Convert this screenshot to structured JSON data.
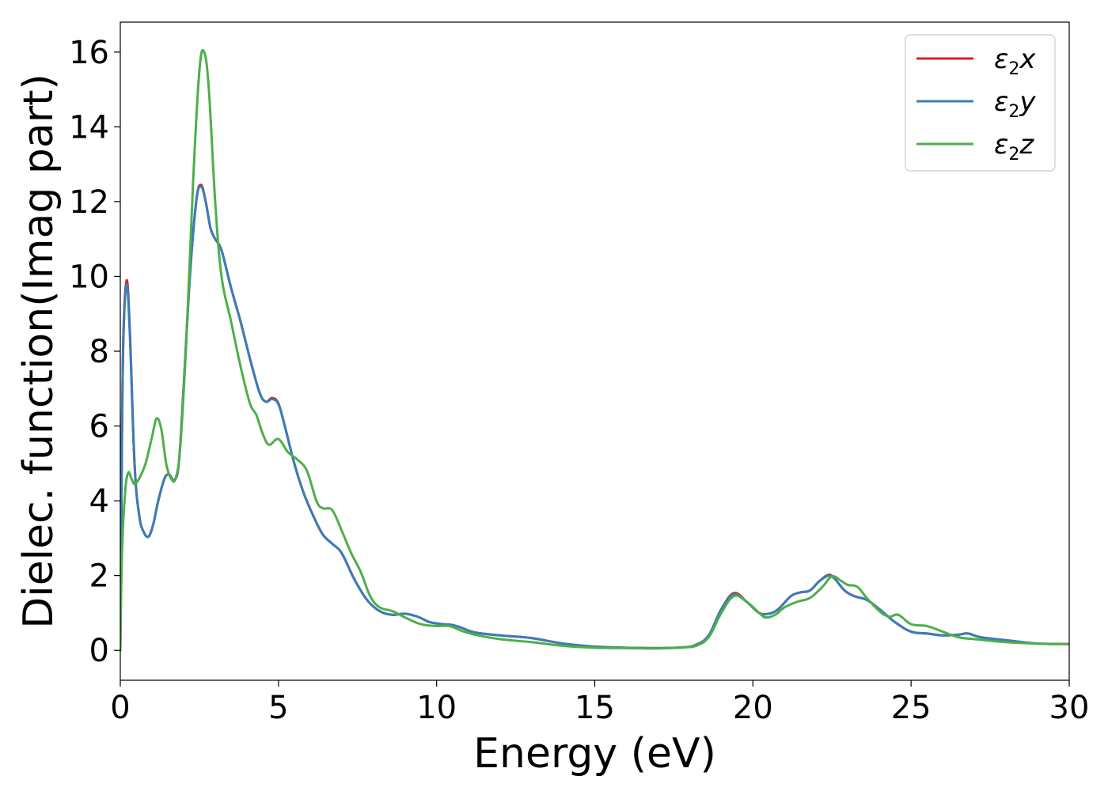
{
  "chart_data": {
    "type": "line",
    "title": "",
    "xlabel": "Energy (eV)",
    "ylabel": "Dielec. function(Imag part)",
    "xlim": [
      0,
      30
    ],
    "ylim": [
      -0.8,
      16.8
    ],
    "xticks": [
      0,
      5,
      10,
      15,
      20,
      25,
      30
    ],
    "yticks": [
      0,
      2,
      4,
      6,
      8,
      10,
      12,
      14,
      16
    ],
    "xtick_labels": [
      "0",
      "5",
      "10",
      "15",
      "20",
      "25",
      "30"
    ],
    "ytick_labels": [
      "0",
      "2",
      "4",
      "6",
      "8",
      "10",
      "12",
      "14",
      "16"
    ],
    "grid": false,
    "legend_position": "top-right",
    "series": [
      {
        "name": "ε2x",
        "legend_base": "ε",
        "legend_sub": "2",
        "legend_var": "x",
        "color": "#e41a1c",
        "points": [
          [
            0,
            0
          ],
          [
            0.05,
            5.5
          ],
          [
            0.1,
            8.5
          ],
          [
            0.2,
            9.9
          ],
          [
            0.3,
            8.6
          ],
          [
            0.45,
            5.0
          ],
          [
            0.6,
            3.6
          ],
          [
            0.75,
            3.15
          ],
          [
            0.9,
            3.05
          ],
          [
            1.05,
            3.4
          ],
          [
            1.2,
            4.0
          ],
          [
            1.4,
            4.6
          ],
          [
            1.55,
            4.7
          ],
          [
            1.7,
            4.55
          ],
          [
            1.85,
            5.0
          ],
          [
            2.0,
            7.0
          ],
          [
            2.2,
            10.0
          ],
          [
            2.4,
            12.0
          ],
          [
            2.55,
            12.45
          ],
          [
            2.7,
            12.0
          ],
          [
            2.85,
            11.3
          ],
          [
            3.0,
            11.0
          ],
          [
            3.2,
            10.7
          ],
          [
            3.5,
            9.7
          ],
          [
            3.8,
            8.8
          ],
          [
            4.1,
            7.8
          ],
          [
            4.4,
            6.9
          ],
          [
            4.6,
            6.65
          ],
          [
            4.8,
            6.75
          ],
          [
            5.0,
            6.6
          ],
          [
            5.2,
            6.0
          ],
          [
            5.5,
            5.0
          ],
          [
            5.8,
            4.2
          ],
          [
            6.1,
            3.6
          ],
          [
            6.4,
            3.1
          ],
          [
            6.7,
            2.85
          ],
          [
            7.0,
            2.6
          ],
          [
            7.4,
            1.9
          ],
          [
            7.8,
            1.35
          ],
          [
            8.2,
            1.05
          ],
          [
            8.6,
            0.95
          ],
          [
            9.0,
            0.98
          ],
          [
            9.4,
            0.9
          ],
          [
            9.8,
            0.75
          ],
          [
            10.2,
            0.7
          ],
          [
            10.5,
            0.68
          ],
          [
            10.8,
            0.6
          ],
          [
            11.2,
            0.48
          ],
          [
            12,
            0.4
          ],
          [
            13,
            0.33
          ],
          [
            14,
            0.18
          ],
          [
            15,
            0.1
          ],
          [
            16,
            0.07
          ],
          [
            17,
            0.06
          ],
          [
            17.8,
            0.08
          ],
          [
            18.2,
            0.15
          ],
          [
            18.6,
            0.4
          ],
          [
            19.0,
            1.1
          ],
          [
            19.4,
            1.53
          ],
          [
            19.8,
            1.3
          ],
          [
            20.2,
            1.0
          ],
          [
            20.5,
            0.98
          ],
          [
            20.8,
            1.1
          ],
          [
            21.2,
            1.45
          ],
          [
            21.5,
            1.55
          ],
          [
            21.8,
            1.6
          ],
          [
            22.1,
            1.85
          ],
          [
            22.4,
            2.02
          ],
          [
            22.6,
            1.9
          ],
          [
            22.9,
            1.6
          ],
          [
            23.2,
            1.45
          ],
          [
            23.6,
            1.35
          ],
          [
            24.0,
            1.1
          ],
          [
            24.5,
            0.75
          ],
          [
            25.0,
            0.5
          ],
          [
            25.5,
            0.45
          ],
          [
            26.0,
            0.4
          ],
          [
            26.5,
            0.42
          ],
          [
            26.8,
            0.45
          ],
          [
            27.2,
            0.35
          ],
          [
            28,
            0.27
          ],
          [
            29,
            0.18
          ],
          [
            30,
            0.17
          ]
        ]
      },
      {
        "name": "ε2y",
        "legend_base": "ε",
        "legend_sub": "2",
        "legend_var": "y",
        "color": "#377eb8",
        "points": [
          [
            0,
            0
          ],
          [
            0.05,
            5.4
          ],
          [
            0.1,
            8.4
          ],
          [
            0.2,
            9.8
          ],
          [
            0.3,
            8.5
          ],
          [
            0.45,
            5.0
          ],
          [
            0.6,
            3.6
          ],
          [
            0.75,
            3.15
          ],
          [
            0.9,
            3.05
          ],
          [
            1.05,
            3.4
          ],
          [
            1.2,
            4.0
          ],
          [
            1.4,
            4.6
          ],
          [
            1.55,
            4.7
          ],
          [
            1.7,
            4.55
          ],
          [
            1.85,
            5.0
          ],
          [
            2.0,
            7.0
          ],
          [
            2.2,
            10.0
          ],
          [
            2.4,
            12.0
          ],
          [
            2.55,
            12.4
          ],
          [
            2.7,
            12.0
          ],
          [
            2.85,
            11.3
          ],
          [
            3.0,
            11.0
          ],
          [
            3.2,
            10.7
          ],
          [
            3.5,
            9.7
          ],
          [
            3.8,
            8.8
          ],
          [
            4.1,
            7.8
          ],
          [
            4.4,
            6.9
          ],
          [
            4.6,
            6.65
          ],
          [
            4.8,
            6.72
          ],
          [
            5.0,
            6.58
          ],
          [
            5.2,
            6.0
          ],
          [
            5.5,
            5.0
          ],
          [
            5.8,
            4.2
          ],
          [
            6.1,
            3.6
          ],
          [
            6.4,
            3.1
          ],
          [
            6.7,
            2.85
          ],
          [
            7.0,
            2.6
          ],
          [
            7.4,
            1.9
          ],
          [
            7.8,
            1.35
          ],
          [
            8.2,
            1.05
          ],
          [
            8.6,
            0.95
          ],
          [
            9.0,
            0.98
          ],
          [
            9.4,
            0.9
          ],
          [
            9.8,
            0.75
          ],
          [
            10.2,
            0.7
          ],
          [
            10.5,
            0.68
          ],
          [
            10.8,
            0.6
          ],
          [
            11.2,
            0.48
          ],
          [
            12,
            0.4
          ],
          [
            13,
            0.33
          ],
          [
            14,
            0.18
          ],
          [
            15,
            0.1
          ],
          [
            16,
            0.07
          ],
          [
            17,
            0.06
          ],
          [
            17.8,
            0.08
          ],
          [
            18.2,
            0.15
          ],
          [
            18.6,
            0.4
          ],
          [
            19.0,
            1.1
          ],
          [
            19.4,
            1.5
          ],
          [
            19.8,
            1.3
          ],
          [
            20.2,
            1.0
          ],
          [
            20.5,
            0.98
          ],
          [
            20.8,
            1.1
          ],
          [
            21.2,
            1.45
          ],
          [
            21.5,
            1.55
          ],
          [
            21.8,
            1.6
          ],
          [
            22.1,
            1.85
          ],
          [
            22.4,
            2.0
          ],
          [
            22.6,
            1.9
          ],
          [
            22.9,
            1.6
          ],
          [
            23.2,
            1.45
          ],
          [
            23.6,
            1.35
          ],
          [
            24.0,
            1.1
          ],
          [
            24.5,
            0.75
          ],
          [
            25.0,
            0.5
          ],
          [
            25.5,
            0.45
          ],
          [
            26.0,
            0.4
          ],
          [
            26.5,
            0.42
          ],
          [
            26.8,
            0.45
          ],
          [
            27.2,
            0.35
          ],
          [
            28,
            0.27
          ],
          [
            29,
            0.18
          ],
          [
            30,
            0.17
          ]
        ]
      },
      {
        "name": "ε2z",
        "legend_base": "ε",
        "legend_sub": "2",
        "legend_var": "z",
        "color": "#4daf4a",
        "points": [
          [
            0,
            0
          ],
          [
            0.05,
            2.5
          ],
          [
            0.15,
            4.2
          ],
          [
            0.25,
            4.75
          ],
          [
            0.35,
            4.6
          ],
          [
            0.45,
            4.45
          ],
          [
            0.6,
            4.6
          ],
          [
            0.8,
            5.0
          ],
          [
            1.0,
            5.7
          ],
          [
            1.15,
            6.2
          ],
          [
            1.3,
            5.9
          ],
          [
            1.45,
            5.0
          ],
          [
            1.6,
            4.6
          ],
          [
            1.75,
            4.6
          ],
          [
            1.9,
            5.5
          ],
          [
            2.1,
            8.5
          ],
          [
            2.3,
            12.5
          ],
          [
            2.5,
            15.5
          ],
          [
            2.65,
            16.0
          ],
          [
            2.8,
            15.0
          ],
          [
            3.0,
            12.0
          ],
          [
            3.2,
            10.0
          ],
          [
            3.5,
            8.8
          ],
          [
            3.8,
            7.6
          ],
          [
            4.1,
            6.6
          ],
          [
            4.3,
            6.3
          ],
          [
            4.5,
            5.8
          ],
          [
            4.7,
            5.5
          ],
          [
            5.0,
            5.65
          ],
          [
            5.3,
            5.3
          ],
          [
            5.6,
            5.1
          ],
          [
            5.9,
            4.8
          ],
          [
            6.2,
            4.0
          ],
          [
            6.4,
            3.8
          ],
          [
            6.7,
            3.75
          ],
          [
            7.0,
            3.2
          ],
          [
            7.3,
            2.6
          ],
          [
            7.6,
            2.1
          ],
          [
            7.9,
            1.45
          ],
          [
            8.2,
            1.15
          ],
          [
            8.6,
            1.05
          ],
          [
            9.0,
            0.88
          ],
          [
            9.5,
            0.7
          ],
          [
            10.0,
            0.65
          ],
          [
            10.4,
            0.65
          ],
          [
            10.8,
            0.52
          ],
          [
            11.2,
            0.42
          ],
          [
            12,
            0.3
          ],
          [
            13,
            0.22
          ],
          [
            14,
            0.12
          ],
          [
            15,
            0.07
          ],
          [
            16,
            0.06
          ],
          [
            17,
            0.05
          ],
          [
            17.8,
            0.08
          ],
          [
            18.2,
            0.12
          ],
          [
            18.6,
            0.35
          ],
          [
            19.0,
            1.0
          ],
          [
            19.4,
            1.45
          ],
          [
            19.8,
            1.3
          ],
          [
            20.2,
            1.0
          ],
          [
            20.4,
            0.88
          ],
          [
            20.7,
            0.95
          ],
          [
            21.0,
            1.15
          ],
          [
            21.4,
            1.3
          ],
          [
            21.8,
            1.4
          ],
          [
            22.2,
            1.7
          ],
          [
            22.5,
            1.98
          ],
          [
            22.8,
            1.85
          ],
          [
            23.0,
            1.75
          ],
          [
            23.3,
            1.7
          ],
          [
            23.6,
            1.4
          ],
          [
            24.0,
            1.05
          ],
          [
            24.3,
            0.9
          ],
          [
            24.6,
            0.95
          ],
          [
            25.0,
            0.7
          ],
          [
            25.5,
            0.65
          ],
          [
            26.0,
            0.5
          ],
          [
            26.5,
            0.35
          ],
          [
            27.0,
            0.3
          ],
          [
            28,
            0.22
          ],
          [
            29,
            0.18
          ],
          [
            30,
            0.17
          ]
        ]
      }
    ]
  }
}
